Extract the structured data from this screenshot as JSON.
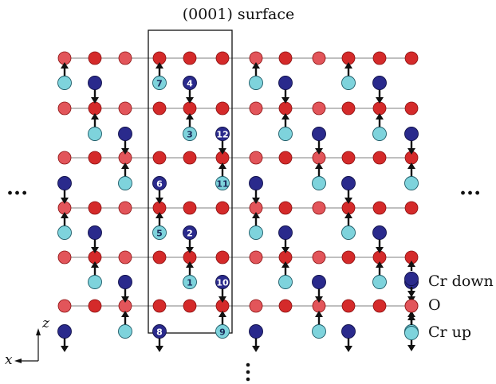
{
  "title": "(0001) surface",
  "ellipsis": "...",
  "legend": [
    {
      "key": "cr_down",
      "label": "Cr down",
      "color": "#2a2a8c"
    },
    {
      "key": "o",
      "label": "O",
      "color": "#d42a2a"
    },
    {
      "key": "cr_up",
      "label": "Cr up",
      "color": "#7ed3dc"
    }
  ],
  "axes": {
    "z_label": "z",
    "x_label": "x"
  },
  "colors": {
    "oxygen": "#d42a2a",
    "oxygen_light": "#e2555a",
    "cr_up": "#7ed3dc",
    "cr_down": "#2a2a8c",
    "bond_line": "#aaaaaa",
    "arrow": "#111111",
    "label_on_dark": "#ffffff",
    "label_on_light": "#1a2a5a"
  },
  "cr_numbers": {
    "col_6": [
      "7",
      "6",
      "5",
      "8"
    ],
    "col_7": [
      "4",
      "3",
      "2",
      "1"
    ],
    "col_8": [
      "12",
      "11",
      "10",
      "9"
    ]
  }
}
